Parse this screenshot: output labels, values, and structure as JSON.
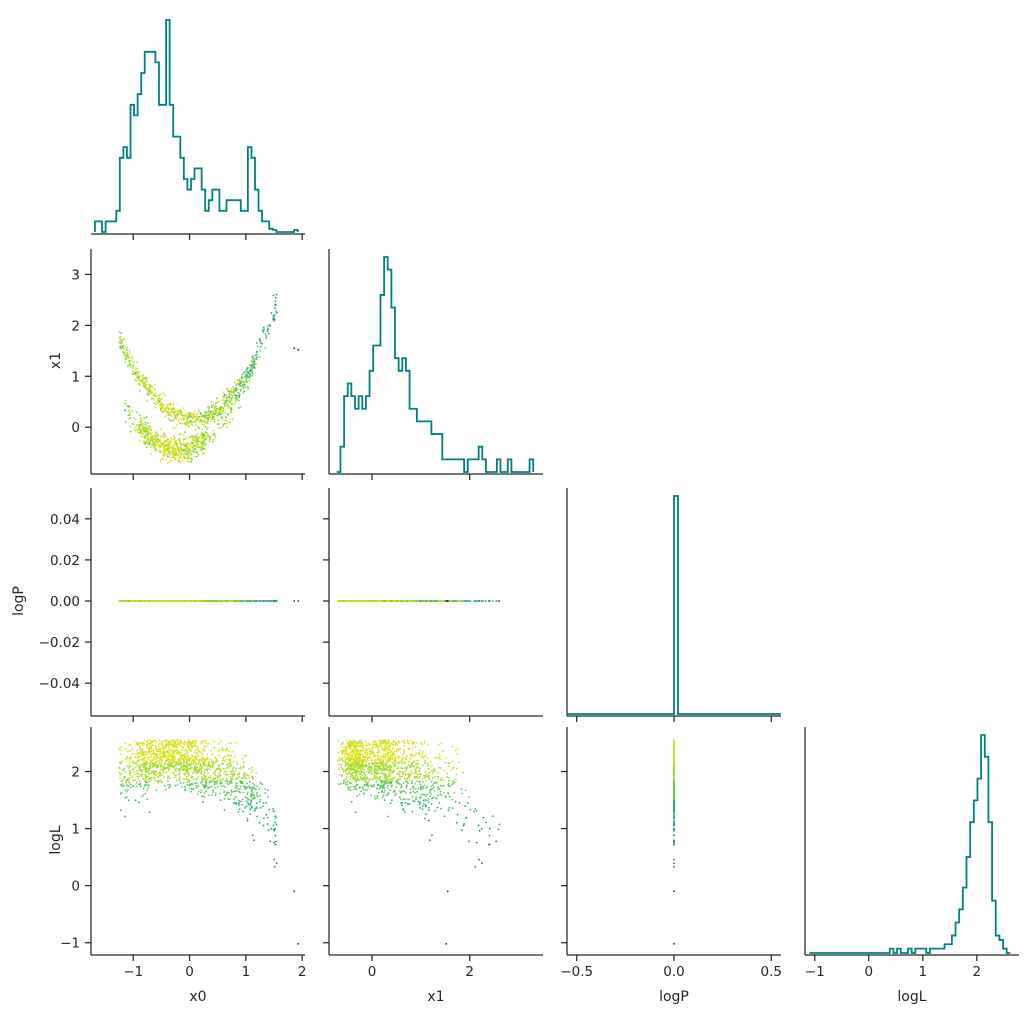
{
  "chart_data": {
    "type": "corner_plot",
    "parameters": [
      "x0",
      "x1",
      "logP",
      "logL"
    ],
    "colors": {
      "histogram": "#008080",
      "axis": "#262626",
      "colormap": [
        "#2c7f8e",
        "#21918c",
        "#27ad81",
        "#5ec962",
        "#aadc32",
        "#d8e219"
      ],
      "colormap_variable": "logL"
    },
    "ranges": {
      "x0": [
        -1.75,
        2.05
      ],
      "x1": [
        -0.88,
        3.5
      ],
      "logP": [
        -0.055,
        0.055
      ],
      "logP_hist": [
        -0.55,
        0.55
      ],
      "logL": [
        -1.18,
        2.78
      ],
      "logL_hist": [
        -1.18,
        2.78
      ]
    },
    "ticks": {
      "x0": [
        "−1",
        "0",
        "1",
        "2"
      ],
      "x0_values": [
        -1,
        0,
        1,
        2
      ],
      "x1": [
        "0",
        "1",
        "2",
        "3"
      ],
      "x1_values": [
        0,
        1,
        2,
        3
      ],
      "x1_bottom": [
        "0",
        "2"
      ],
      "x1_bottom_values": [
        0,
        2
      ],
      "logP": [
        "0.04",
        "0.02",
        "0.00",
        "−0.02",
        "−0.04"
      ],
      "logP_values": [
        0.04,
        0.02,
        0.0,
        -0.02,
        -0.04
      ],
      "logP_bottom": [
        "−0.5",
        "0.0",
        "0.5"
      ],
      "logP_bottom_values": [
        -0.5,
        0.0,
        0.5
      ],
      "logL": [
        "2",
        "1",
        "0",
        "−1"
      ],
      "logL_values": [
        2,
        1,
        0,
        -1
      ],
      "logL_bottom": [
        "−1",
        "0",
        "1",
        "2"
      ],
      "logL_bottom_values": [
        -1,
        0,
        1,
        2
      ]
    },
    "histograms": {
      "x0": {
        "bin_edges_range": [
          -1.68,
          1.92
        ],
        "counts": [
          1,
          1,
          0,
          1,
          1,
          1,
          2,
          7,
          8,
          7,
          12,
          11,
          13,
          15,
          17,
          17,
          17,
          16,
          12,
          12,
          20,
          12,
          9,
          9,
          7,
          5,
          4,
          5,
          6,
          6,
          4,
          2,
          3,
          4,
          4,
          2,
          2,
          3,
          3,
          3,
          3,
          2,
          2,
          8,
          7,
          4,
          2,
          1,
          1,
          0.3,
          0.2,
          0,
          0,
          0,
          0,
          0,
          0.2
        ]
      },
      "x1": {
        "bin_edges_range": [
          -0.72,
          3.3
        ],
        "counts": [
          0,
          2,
          6,
          7,
          6,
          5,
          6,
          5,
          6,
          8,
          10,
          10,
          14,
          17,
          16,
          13,
          9,
          8,
          9,
          8,
          5,
          5,
          4,
          4,
          4,
          4,
          3,
          3,
          3,
          1,
          1,
          1,
          1,
          1,
          1,
          0,
          1,
          1,
          1,
          2,
          1,
          0,
          0,
          0,
          1,
          0,
          0,
          1,
          0,
          0,
          0,
          0,
          0,
          1
        ]
      },
      "logP": {
        "bin_edges_range": [
          -0.55,
          0.55
        ],
        "counts": [
          0,
          0,
          0,
          0,
          0,
          0,
          0,
          0,
          0,
          0,
          0,
          0,
          0,
          0,
          0,
          0,
          0,
          0,
          0,
          0,
          0,
          0,
          0,
          0,
          0,
          0,
          0,
          100,
          0,
          0,
          0,
          0,
          0,
          0,
          0,
          0,
          0,
          0,
          0,
          0,
          0,
          0,
          0,
          0,
          0,
          0,
          0,
          0,
          0,
          0,
          0,
          0,
          0,
          0
        ]
      },
      "logL": {
        "bin_edges_range": [
          -1.1,
          2.62
        ],
        "counts": [
          0,
          0,
          0,
          0,
          0,
          0,
          0,
          0,
          0,
          0,
          0,
          0,
          0,
          0,
          0,
          0,
          0,
          0,
          0,
          0,
          0,
          0,
          1,
          0,
          1,
          0,
          0,
          1,
          0,
          1,
          1,
          1,
          0,
          1,
          1,
          1,
          1,
          2,
          2,
          4,
          7,
          10,
          15,
          22,
          30,
          35,
          40,
          50,
          45,
          30,
          12,
          4,
          3,
          1,
          0
        ]
      }
    },
    "scatter": {
      "description_free": true,
      "x0_vs_x1_curve": "x1 ≈ (x0 − 0.1)² − 0.4 (two offset bands)",
      "logP_constant": 0.0,
      "outliers": [
        {
          "x0": 1.86,
          "x1": 1.55,
          "logL": -0.1
        },
        {
          "x0": 1.93,
          "x1": 1.52,
          "logL": -1.02
        }
      ]
    }
  }
}
